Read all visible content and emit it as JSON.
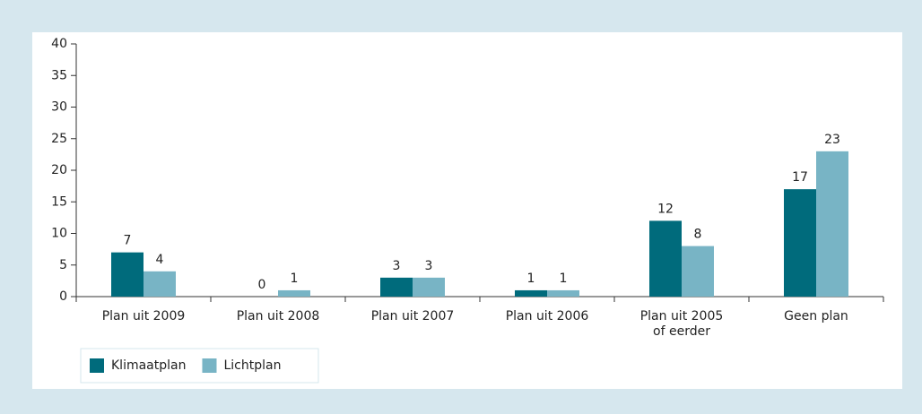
{
  "chart_data": {
    "type": "bar",
    "categories": [
      "Plan uit 2009",
      "Plan uit 2008",
      "Plan uit 2007",
      "Plan uit 2006",
      "Plan uit 2005\nof eerder",
      "Geen plan"
    ],
    "series": [
      {
        "name": "Klimaatplan",
        "color": "#006b7c",
        "values": [
          7,
          0,
          3,
          1,
          12,
          17
        ]
      },
      {
        "name": "Lichtplan",
        "color": "#78b4c5",
        "values": [
          4,
          1,
          3,
          1,
          8,
          23
        ]
      }
    ],
    "ylim": [
      0,
      40
    ],
    "yticks": [
      0,
      5,
      10,
      15,
      20,
      25,
      30,
      35,
      40
    ],
    "legend": "bottom-left"
  }
}
